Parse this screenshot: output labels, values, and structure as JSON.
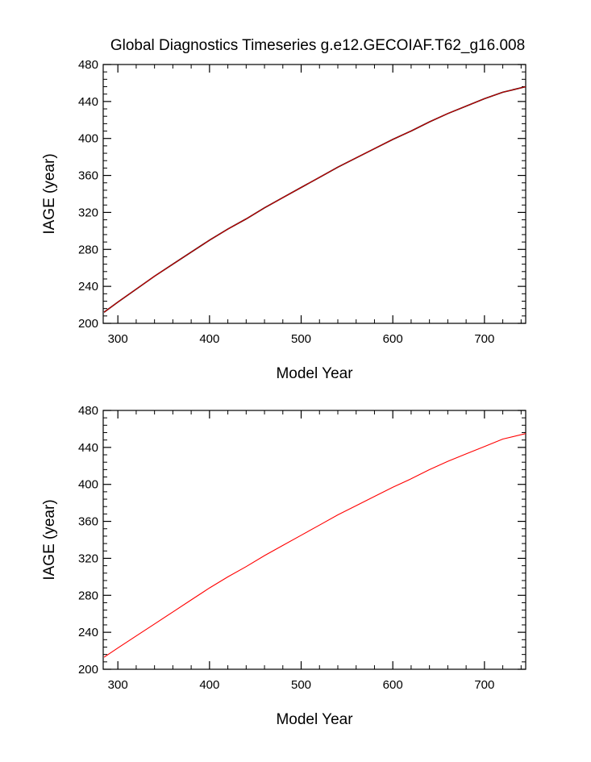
{
  "title": "Global Diagnostics Timeseries g.e12.GECOIAF.T62_g16.008",
  "chart_data": [
    {
      "type": "line",
      "title": "Global Diagnostics Timeseries g.e12.GECOIAF.T62_g16.008",
      "xlabel": "Model Year",
      "ylabel": "IAGE (year)",
      "xlim": [
        284,
        745
      ],
      "ylim": [
        200,
        480
      ],
      "xticks": [
        300,
        400,
        500,
        600,
        700
      ],
      "yticks": [
        200,
        240,
        280,
        320,
        360,
        400,
        440,
        480
      ],
      "grid": false,
      "series": [
        {
          "color": "#cc0000",
          "secondary_color": "#000000",
          "x": [
            285,
            300,
            320,
            340,
            360,
            380,
            400,
            420,
            440,
            460,
            480,
            500,
            520,
            540,
            560,
            580,
            600,
            620,
            640,
            660,
            680,
            700,
            720,
            745
          ],
          "y": [
            212,
            223,
            237,
            251,
            264,
            277,
            290,
            302,
            313,
            325,
            336,
            347,
            358,
            369,
            379,
            389,
            399,
            408,
            418,
            427,
            435,
            443,
            450,
            456
          ]
        }
      ]
    },
    {
      "type": "line",
      "title": "",
      "xlabel": "Model Year",
      "ylabel": "IAGE (year)",
      "xlim": [
        284,
        745
      ],
      "ylim": [
        200,
        480
      ],
      "xticks": [
        300,
        400,
        500,
        600,
        700
      ],
      "yticks": [
        200,
        240,
        280,
        320,
        360,
        400,
        440,
        480
      ],
      "grid": false,
      "series": [
        {
          "color": "#ff0000",
          "x": [
            285,
            300,
            320,
            340,
            360,
            380,
            400,
            420,
            440,
            460,
            480,
            500,
            520,
            540,
            560,
            580,
            600,
            620,
            640,
            660,
            680,
            700,
            720,
            745
          ],
          "y": [
            213,
            223,
            236,
            249,
            262,
            275,
            288,
            300,
            311,
            323,
            334,
            345,
            356,
            367,
            377,
            387,
            397,
            406,
            416,
            425,
            433,
            441,
            449,
            455
          ]
        }
      ]
    }
  ]
}
